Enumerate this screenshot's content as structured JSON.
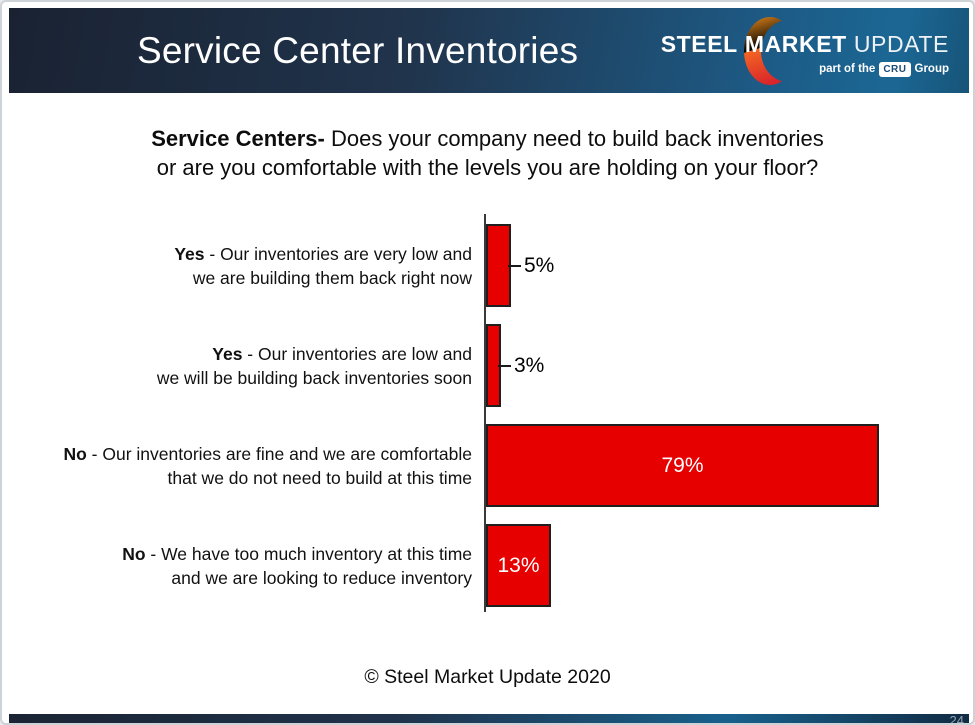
{
  "slide": {
    "header": {
      "title": "Service Center Inventories",
      "logo": {
        "word1": "STEEL",
        "word2": "MARKET",
        "word3": "UPDATE",
        "tagline_prefix": "part of the",
        "badge": "CRU",
        "tagline_suffix": "Group"
      }
    },
    "question": {
      "line1_bold": "Service Centers-",
      "line1_rest": " Does your company need to build back inventories",
      "line2": "or are you comfortable with the levels you are holding on your floor?"
    },
    "footer": "© Steel Market Update 2020",
    "page_number": "24"
  },
  "chart_data": {
    "type": "bar",
    "orientation": "horizontal",
    "title": "Service Centers- Does your company need to build back inventories or are you comfortable with the levels you are holding on your floor?",
    "categories": [
      "Yes - Our inventories are very low and we are building them back right now",
      "Yes - Our inventories are low and we will be building back inventories soon",
      "No - Our inventories are fine and we are comfortable that we do not need to build at this time",
      "No - We have too much inventory at this time and we are looking to reduce inventory"
    ],
    "values": [
      5,
      3,
      79,
      13
    ],
    "value_labels": [
      "5%",
      "3%",
      "79%",
      "13%"
    ],
    "xlim": [
      0,
      100
    ],
    "grid": false,
    "legend": false,
    "bar_color": "#e60000",
    "bar_border_color": "#1f1f1f",
    "inside_label_color": "#ffffff",
    "outside_label_color": "#000000",
    "rows": [
      {
        "line1_bold": "Yes",
        "line1_rest": " - Our inventories are very low and",
        "line2": "we are building them back right now",
        "value": 5,
        "value_label": "5%"
      },
      {
        "line1_bold": "Yes",
        "line1_rest": " - Our inventories are low and",
        "line2": "we will be building back inventories soon",
        "value": 3,
        "value_label": "3%"
      },
      {
        "line1_bold": "No",
        "line1_rest": " - Our inventories are fine and we are comfortable",
        "line2": "that we do not need to build at this time",
        "value": 79,
        "value_label": "79%"
      },
      {
        "line1_bold": "No",
        "line1_rest": " - We have too much inventory at this time",
        "line2": "and we are looking to reduce inventory",
        "value": 13,
        "value_label": "13%"
      }
    ]
  },
  "colors": {
    "bar_red": "#e60000",
    "header_navy": "#1a2232",
    "header_blue": "#1b6794",
    "accent_orange": "#f6921e",
    "accent_red": "#d9252b"
  }
}
